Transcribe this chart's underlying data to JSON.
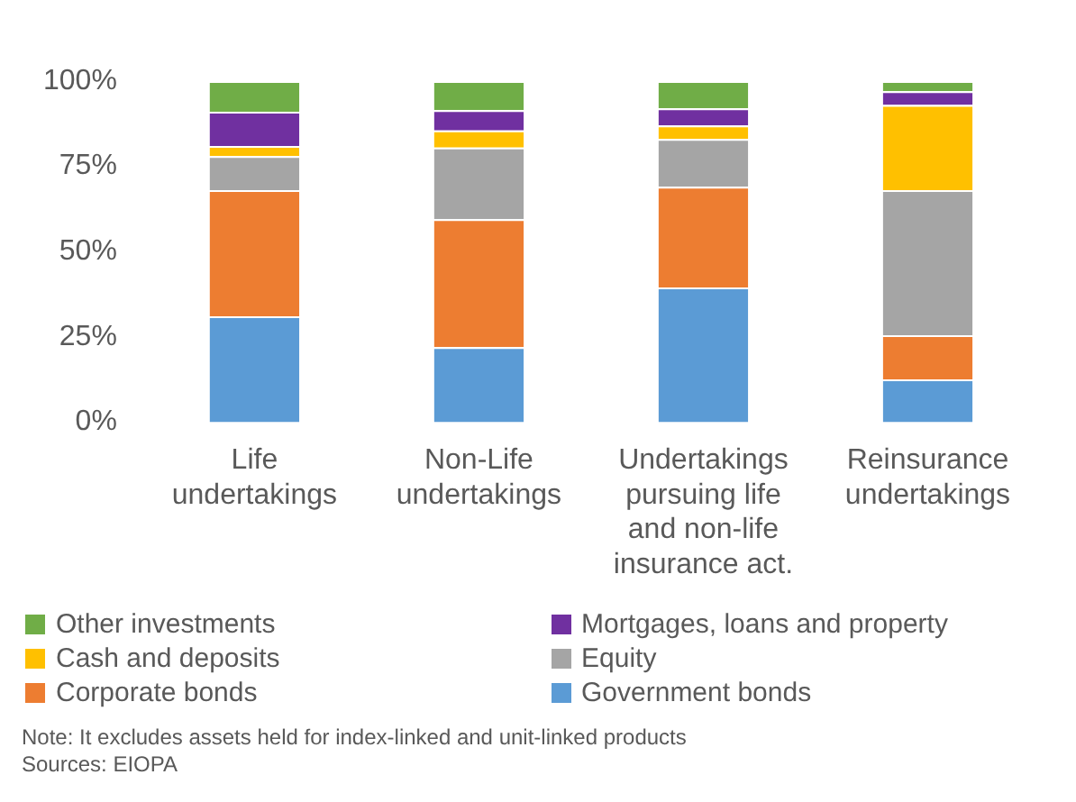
{
  "chart_data": {
    "type": "bar",
    "stacked": true,
    "categories": [
      "Life undertakings",
      "Non-Life undertakings",
      "Undertakings pursuing life and non-life insurance act.",
      "Reinsurance undertakings"
    ],
    "series": [
      {
        "name": "Government bonds",
        "color": "#5b9bd5",
        "values": [
          31,
          22,
          39.5,
          12.5
        ]
      },
      {
        "name": "Corporate bonds",
        "color": "#ed7d31",
        "values": [
          37,
          37.5,
          29.5,
          13
        ]
      },
      {
        "name": "Equity",
        "color": "#a5a5a5",
        "values": [
          10,
          21,
          14,
          42.5
        ]
      },
      {
        "name": "Cash and deposits",
        "color": "#ffc000",
        "values": [
          3,
          5,
          4,
          25
        ]
      },
      {
        "name": "Mortgages,  loans and property",
        "color": "#7030a0",
        "values": [
          10,
          6,
          5,
          4
        ]
      },
      {
        "name": "Other investments",
        "color": "#70ad47",
        "values": [
          9,
          8.5,
          8,
          3
        ]
      }
    ],
    "ylim": [
      0,
      100
    ],
    "yticks": [
      {
        "value": 0,
        "label": "0%"
      },
      {
        "value": 25,
        "label": "25%"
      },
      {
        "value": 50,
        "label": "50%"
      },
      {
        "value": 75,
        "label": "75%"
      },
      {
        "value": 100,
        "label": "100%"
      }
    ],
    "grid": false,
    "legend": "bottom",
    "annotations": [
      "Note: It excludes assets held for index-linked and unit-linked products",
      "Sources: EIOPA"
    ]
  }
}
